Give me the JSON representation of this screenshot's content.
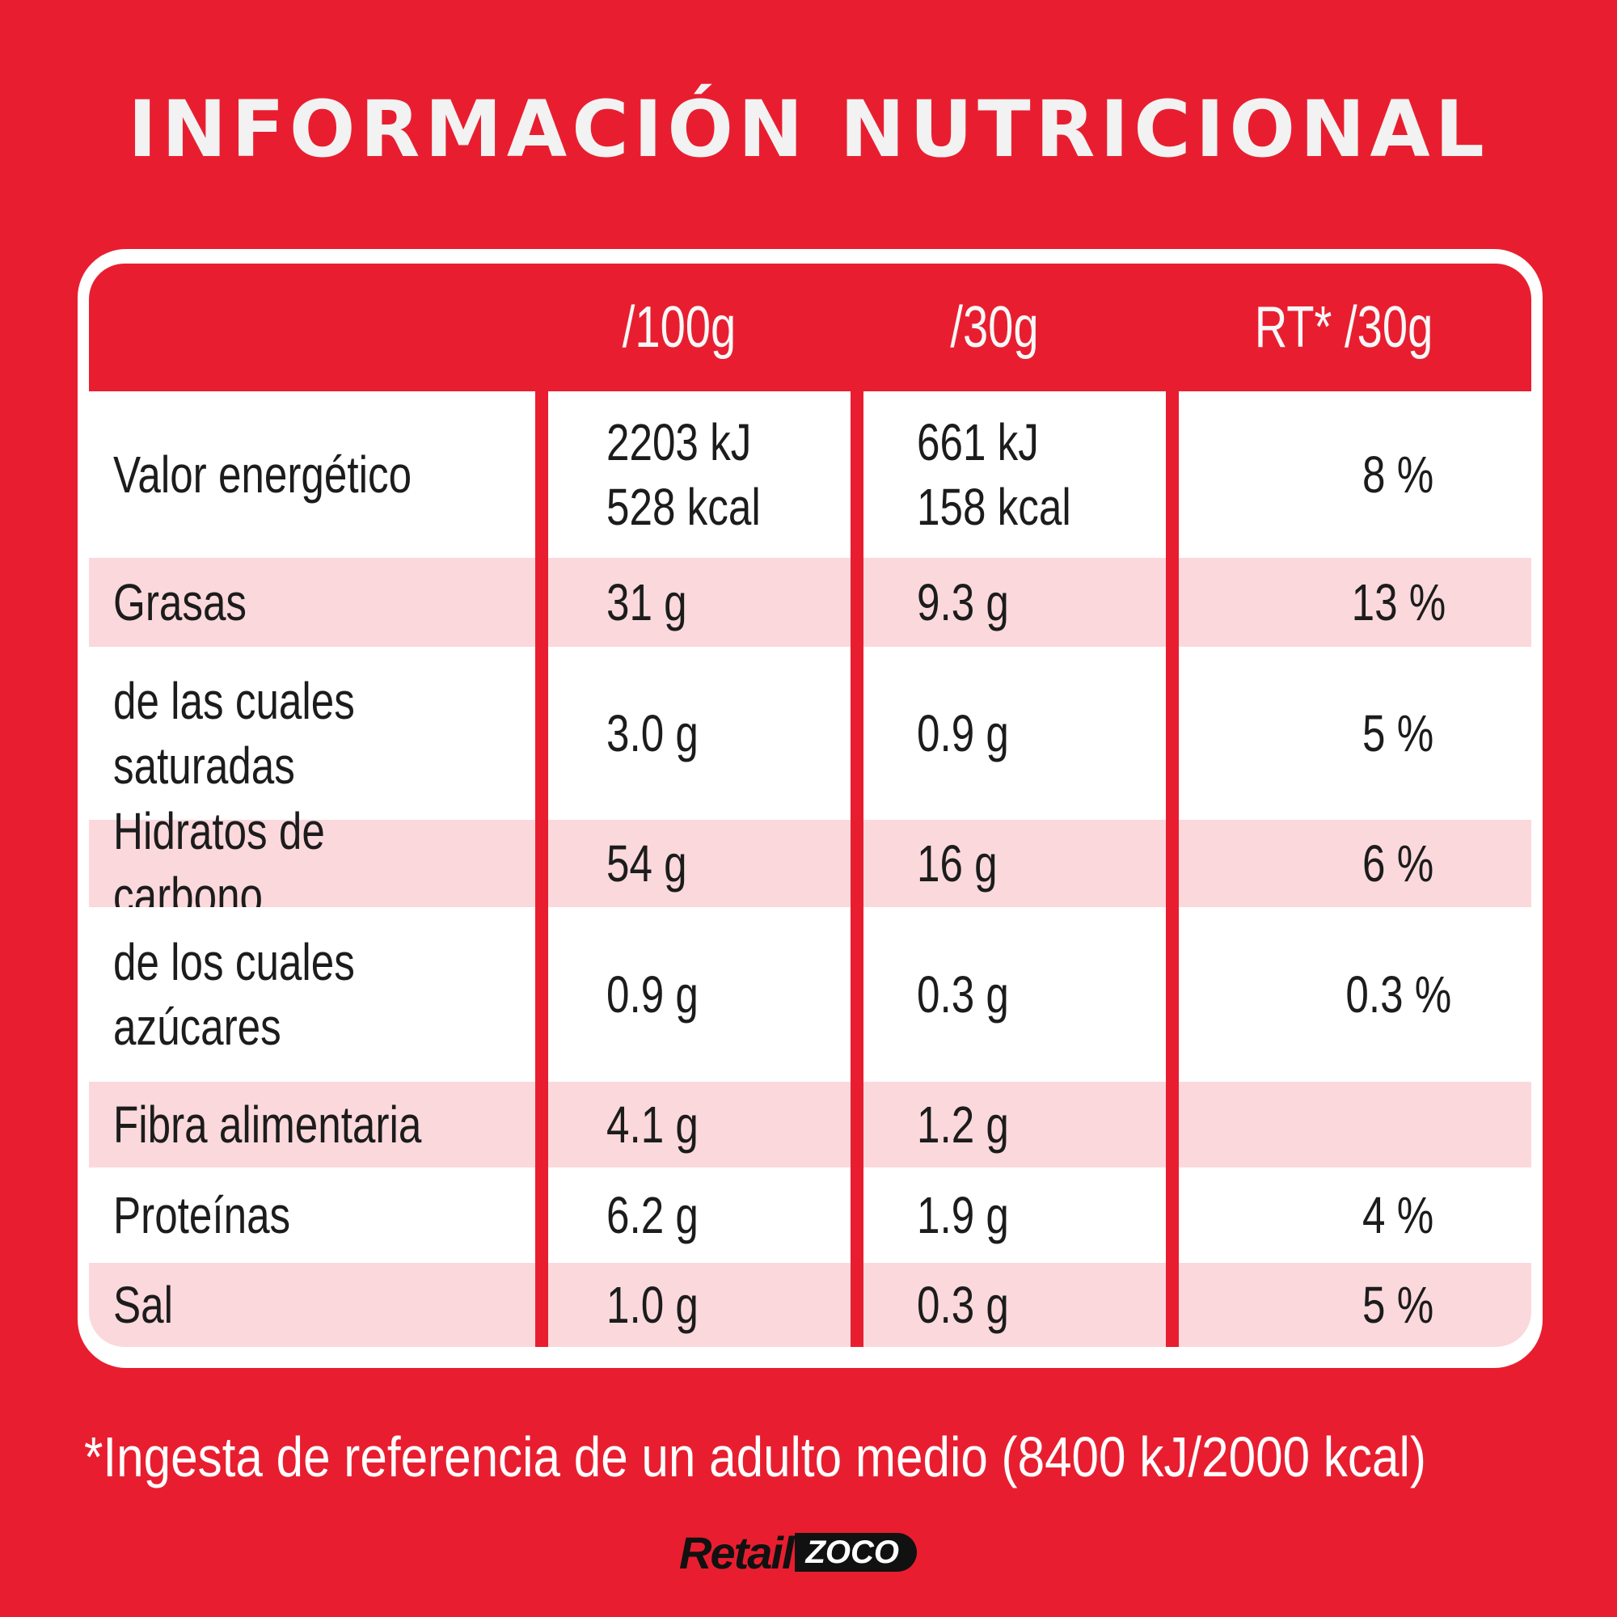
{
  "title": "INFORMACIÓN NUTRICIONAL",
  "table": {
    "headers": [
      "",
      "/100g",
      "/30g",
      "RT* /30g"
    ],
    "rows": [
      {
        "label": "Valor energético",
        "per100g": "2203 kJ\n528 kcal",
        "per30g": "661 kJ\n158 kcal",
        "rt30g": "8 %"
      },
      {
        "label": "Grasas",
        "per100g": "31 g",
        "per30g": "9.3 g",
        "rt30g": "13 %"
      },
      {
        "label": "de las cuales\nsaturadas",
        "per100g": "3.0 g",
        "per30g": "0.9 g",
        "rt30g": "5 %"
      },
      {
        "label": "Hidratos de carbono",
        "per100g": "54 g",
        "per30g": "16 g",
        "rt30g": "6 %"
      },
      {
        "label": "de los cuales\nazúcares",
        "per100g": "0.9 g",
        "per30g": "0.3 g",
        "rt30g": "0.3 %"
      },
      {
        "label": "Fibra alimentaria",
        "per100g": "4.1 g",
        "per30g": "1.2 g",
        "rt30g": ""
      },
      {
        "label": "Proteínas",
        "per100g": "6.2 g",
        "per30g": "1.9 g",
        "rt30g": "4 %"
      },
      {
        "label": "Sal",
        "per100g": "1.0 g",
        "per30g": "0.3 g",
        "rt30g": "5 %"
      }
    ]
  },
  "footnote": "*Ingesta de referencia de un adulto medio (8400 kJ/2000 kcal)",
  "logo": {
    "part1": "Retail",
    "part2": "ZOCO"
  },
  "colors": {
    "background": "#e81e30",
    "row_shade": "#fbd8dc",
    "card": "#ffffff"
  }
}
